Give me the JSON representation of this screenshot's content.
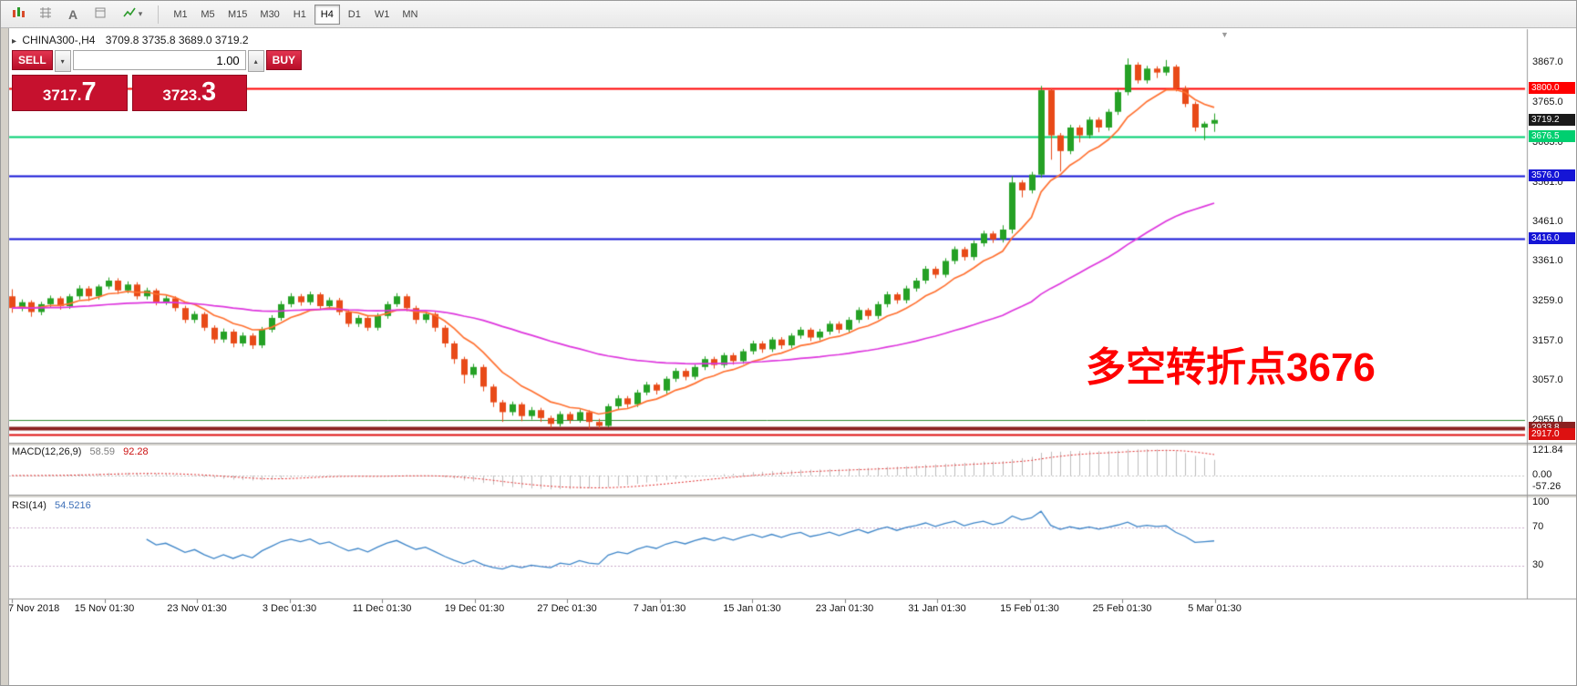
{
  "toolbar": {
    "timeframes": [
      "M1",
      "M5",
      "M15",
      "M30",
      "H1",
      "H4",
      "D1",
      "W1",
      "MN"
    ],
    "active_timeframe": "H4",
    "text_tool_label": "A"
  },
  "icons": {
    "symbol_marker": "▸",
    "scroll_marker": "▼",
    "volume_dropdown": "▾",
    "volume_up": "▴",
    "indicators_caret": "▾"
  },
  "symbol_header": {
    "symbol": "CHINA300-,H4",
    "ohlc": "3709.8 3735.8 3689.0 3719.2"
  },
  "trade_panel": {
    "sell_label": "SELL",
    "buy_label": "BUY",
    "volume": "1.00",
    "sell_price": {
      "main": "3717.",
      "big": "7"
    },
    "buy_price": {
      "main": "3723.",
      "big": "3"
    }
  },
  "annotation": {
    "text": "多空转折点3676",
    "color": "#ff0000"
  },
  "macd_panel": {
    "name": "MACD(12,26,9)",
    "value_main": "58.59",
    "value_signal": "92.28",
    "axis_labels": [
      "121.84",
      "0.00",
      "-57.26"
    ]
  },
  "rsi_panel": {
    "name": "RSI(14)",
    "value": "54.5216",
    "axis_labels": [
      "100",
      "70",
      "30"
    ]
  },
  "time_axis": {
    "labels": [
      "7 Nov 2018",
      "15 Nov 01:30",
      "23 Nov 01:30",
      "3 Dec 01:30",
      "11 Dec 01:30",
      "19 Dec 01:30",
      "27 Dec 01:30",
      "7 Jan 01:30",
      "15 Jan 01:30",
      "23 Jan 01:30",
      "31 Jan 01:30",
      "15 Feb 01:30",
      "25 Feb 01:30",
      "5 Mar 01:30"
    ]
  },
  "price_axis": {
    "gridline_labels": [
      "3867.0",
      "3765.0",
      "3663.0",
      "3561.0",
      "3461.0",
      "3361.0",
      "3259.0",
      "3157.0",
      "3057.0",
      "2955.0"
    ]
  },
  "chart_data": {
    "type": "candlestick",
    "symbol": "CHINA300-",
    "timeframe": "H4",
    "x_range": [
      "7 Nov 2018",
      "8 Mar 2019"
    ],
    "y_range": [
      2917,
      3880
    ],
    "last_price": 3719.2,
    "levels": [
      {
        "price": 3800.0,
        "label": "3800.0",
        "color": "#ff0000",
        "line": true,
        "lw": 2
      },
      {
        "price": 3719.2,
        "label": "3719.2",
        "color": "#1a1a1a",
        "line": false,
        "lw": 1
      },
      {
        "price": 3676.5,
        "label": "3676.5",
        "color": "#00cf70",
        "line": true,
        "lw": 2
      },
      {
        "price": 3576.0,
        "label": "3576.0",
        "color": "#1515d6",
        "line": true,
        "lw": 2
      },
      {
        "price": 3416.0,
        "label": "3416.0",
        "color": "#1515d6",
        "line": true,
        "lw": 2
      },
      {
        "price": 2955.0,
        "label": null,
        "color": "#2e8b2e",
        "line": true,
        "lw": 1
      },
      {
        "price": 2933.8,
        "label": "2933.8",
        "color": "#8b2121",
        "line": true,
        "lw": 4
      },
      {
        "price": 2917.0,
        "label": "2917.0",
        "color": "#dd1111",
        "line": true,
        "lw": 2
      }
    ],
    "moving_averages": [
      {
        "type": "ema",
        "period": 9,
        "color": "#ff7030"
      },
      {
        "type": "ema",
        "period": 55,
        "color": "#dd35dd"
      }
    ],
    "indicators": [
      {
        "name": "MACD",
        "params": [
          12,
          26,
          9
        ],
        "values": [
          58.59,
          92.28
        ]
      },
      {
        "name": "RSI",
        "params": [
          14
        ],
        "value": 54.5216
      }
    ],
    "colors": {
      "up": "#25a125",
      "down": "#e84a18"
    },
    "candles": [
      [
        3270,
        3288,
        3228,
        3240
      ],
      [
        3240,
        3262,
        3232,
        3255
      ],
      [
        3255,
        3260,
        3218,
        3230
      ],
      [
        3230,
        3256,
        3222,
        3250
      ],
      [
        3250,
        3272,
        3242,
        3265
      ],
      [
        3265,
        3270,
        3236,
        3245
      ],
      [
        3245,
        3276,
        3238,
        3270
      ],
      [
        3270,
        3298,
        3262,
        3290
      ],
      [
        3290,
        3296,
        3258,
        3270
      ],
      [
        3270,
        3300,
        3262,
        3295
      ],
      [
        3295,
        3318,
        3288,
        3310
      ],
      [
        3310,
        3316,
        3276,
        3285
      ],
      [
        3285,
        3308,
        3278,
        3300
      ],
      [
        3300,
        3306,
        3262,
        3270
      ],
      [
        3270,
        3292,
        3262,
        3285
      ],
      [
        3285,
        3290,
        3247,
        3255
      ],
      [
        3255,
        3272,
        3248,
        3265
      ],
      [
        3265,
        3270,
        3232,
        3240
      ],
      [
        3240,
        3246,
        3202,
        3210
      ],
      [
        3210,
        3232,
        3202,
        3225
      ],
      [
        3225,
        3230,
        3182,
        3190
      ],
      [
        3190,
        3196,
        3150,
        3160
      ],
      [
        3160,
        3188,
        3152,
        3180
      ],
      [
        3180,
        3186,
        3140,
        3150
      ],
      [
        3150,
        3178,
        3142,
        3170
      ],
      [
        3170,
        3176,
        3136,
        3145
      ],
      [
        3145,
        3192,
        3138,
        3185
      ],
      [
        3185,
        3222,
        3178,
        3215
      ],
      [
        3215,
        3258,
        3208,
        3250
      ],
      [
        3250,
        3278,
        3242,
        3270
      ],
      [
        3270,
        3276,
        3246,
        3255
      ],
      [
        3255,
        3282,
        3248,
        3275
      ],
      [
        3275,
        3280,
        3238,
        3245
      ],
      [
        3245,
        3267,
        3238,
        3260
      ],
      [
        3260,
        3266,
        3222,
        3230
      ],
      [
        3230,
        3236,
        3192,
        3200
      ],
      [
        3200,
        3222,
        3192,
        3215
      ],
      [
        3215,
        3220,
        3182,
        3190
      ],
      [
        3190,
        3227,
        3183,
        3220
      ],
      [
        3220,
        3257,
        3213,
        3250
      ],
      [
        3250,
        3278,
        3243,
        3270
      ],
      [
        3270,
        3276,
        3232,
        3240
      ],
      [
        3240,
        3246,
        3200,
        3210
      ],
      [
        3210,
        3232,
        3202,
        3225
      ],
      [
        3225,
        3230,
        3180,
        3190
      ],
      [
        3190,
        3196,
        3140,
        3150
      ],
      [
        3150,
        3156,
        3098,
        3110
      ],
      [
        3110,
        3116,
        3048,
        3070
      ],
      [
        3070,
        3098,
        3062,
        3090
      ],
      [
        3090,
        3096,
        3028,
        3040
      ],
      [
        3040,
        3046,
        2988,
        3000
      ],
      [
        3000,
        3006,
        2950,
        2975
      ],
      [
        2975,
        3002,
        2966,
        2995
      ],
      [
        2995,
        3000,
        2952,
        2965
      ],
      [
        2965,
        2988,
        2956,
        2980
      ],
      [
        2980,
        2986,
        2950,
        2960
      ],
      [
        2960,
        2966,
        2935,
        2945
      ],
      [
        2945,
        2977,
        2938,
        2970
      ],
      [
        2970,
        2976,
        2946,
        2955
      ],
      [
        2955,
        2982,
        2948,
        2975
      ],
      [
        2975,
        2980,
        2933,
        2950
      ],
      [
        2950,
        2958,
        2934,
        2940
      ],
      [
        2940,
        2996,
        2936,
        2990
      ],
      [
        2990,
        3018,
        2982,
        3010
      ],
      [
        3010,
        3016,
        2986,
        2995
      ],
      [
        2995,
        3032,
        2988,
        3025
      ],
      [
        3025,
        3052,
        3018,
        3045
      ],
      [
        3045,
        3050,
        3020,
        3030
      ],
      [
        3030,
        3066,
        3022,
        3060
      ],
      [
        3060,
        3087,
        3052,
        3080
      ],
      [
        3080,
        3086,
        3056,
        3065
      ],
      [
        3065,
        3096,
        3058,
        3090
      ],
      [
        3090,
        3117,
        3082,
        3110
      ],
      [
        3110,
        3116,
        3086,
        3095
      ],
      [
        3095,
        3126,
        3088,
        3120
      ],
      [
        3120,
        3126,
        3096,
        3105
      ],
      [
        3105,
        3136,
        3098,
        3130
      ],
      [
        3130,
        3157,
        3122,
        3150
      ],
      [
        3150,
        3156,
        3126,
        3135
      ],
      [
        3135,
        3166,
        3128,
        3160
      ],
      [
        3160,
        3166,
        3136,
        3145
      ],
      [
        3145,
        3176,
        3138,
        3170
      ],
      [
        3170,
        3192,
        3162,
        3185
      ],
      [
        3185,
        3190,
        3156,
        3165
      ],
      [
        3165,
        3187,
        3158,
        3180
      ],
      [
        3180,
        3207,
        3172,
        3200
      ],
      [
        3200,
        3206,
        3176,
        3185
      ],
      [
        3185,
        3217,
        3178,
        3210
      ],
      [
        3210,
        3242,
        3202,
        3235
      ],
      [
        3235,
        3240,
        3211,
        3220
      ],
      [
        3220,
        3257,
        3212,
        3250
      ],
      [
        3250,
        3282,
        3242,
        3275
      ],
      [
        3275,
        3280,
        3251,
        3260
      ],
      [
        3260,
        3297,
        3252,
        3290
      ],
      [
        3290,
        3317,
        3282,
        3310
      ],
      [
        3310,
        3347,
        3302,
        3340
      ],
      [
        3340,
        3346,
        3316,
        3325
      ],
      [
        3325,
        3367,
        3318,
        3360
      ],
      [
        3360,
        3397,
        3352,
        3390
      ],
      [
        3390,
        3396,
        3361,
        3370
      ],
      [
        3370,
        3412,
        3362,
        3405
      ],
      [
        3405,
        3437,
        3397,
        3430
      ],
      [
        3430,
        3436,
        3406,
        3415
      ],
      [
        3415,
        3451,
        3407,
        3440
      ],
      [
        3440,
        3576,
        3430,
        3560
      ],
      [
        3560,
        3566,
        3522,
        3540
      ],
      [
        3540,
        3587,
        3532,
        3580
      ],
      [
        3580,
        3806,
        3572,
        3795
      ],
      [
        3795,
        3800,
        3618,
        3680
      ],
      [
        3680,
        3686,
        3588,
        3640
      ],
      [
        3640,
        3707,
        3632,
        3700
      ],
      [
        3700,
        3706,
        3662,
        3680
      ],
      [
        3680,
        3727,
        3672,
        3720
      ],
      [
        3720,
        3726,
        3688,
        3700
      ],
      [
        3700,
        3747,
        3692,
        3740
      ],
      [
        3740,
        3797,
        3732,
        3790
      ],
      [
        3790,
        3876,
        3782,
        3860
      ],
      [
        3860,
        3866,
        3812,
        3820
      ],
      [
        3820,
        3857,
        3812,
        3850
      ],
      [
        3850,
        3856,
        3826,
        3840
      ],
      [
        3840,
        3872,
        3832,
        3855
      ],
      [
        3855,
        3860,
        3792,
        3800
      ],
      [
        3800,
        3806,
        3752,
        3760
      ],
      [
        3760,
        3766,
        3690,
        3700
      ],
      [
        3700,
        3715,
        3668,
        3709.8
      ],
      [
        3709.8,
        3735.8,
        3689,
        3719.2
      ]
    ]
  }
}
